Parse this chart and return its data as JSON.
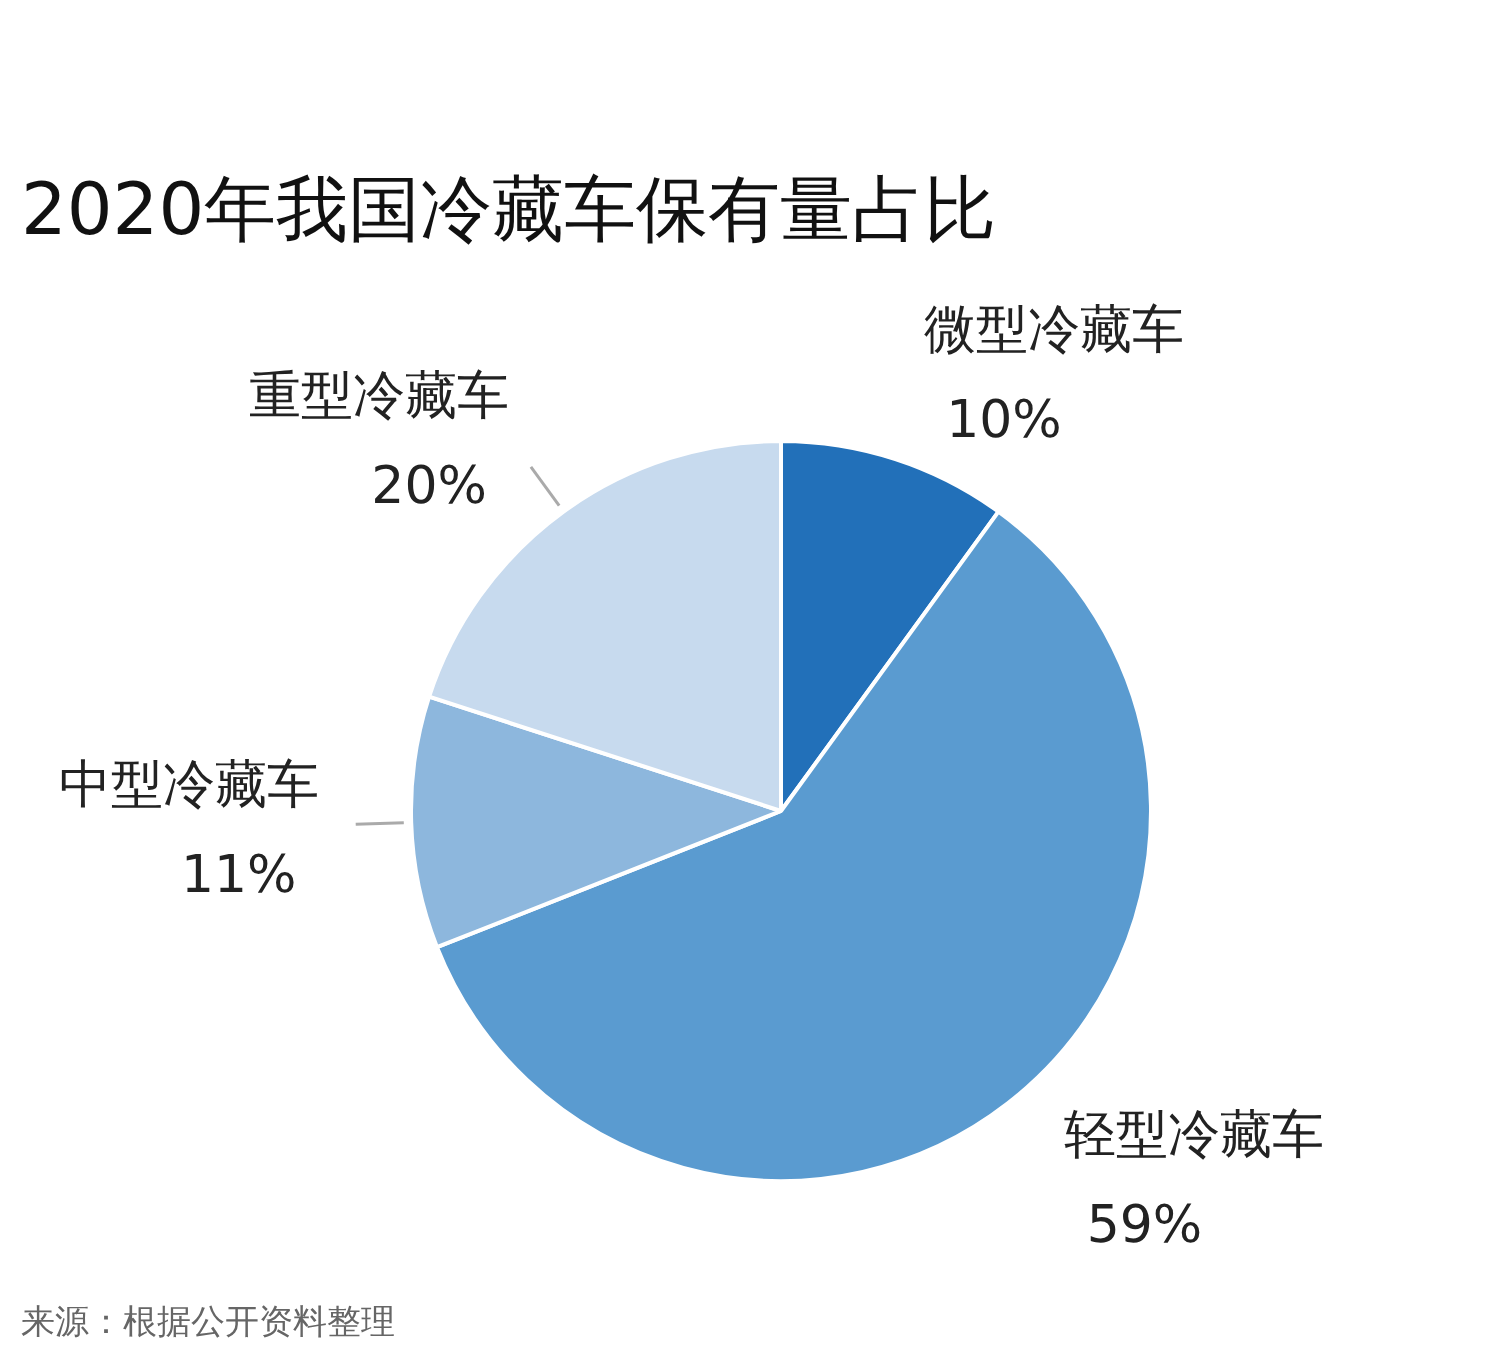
{
  "chart_data": {
    "type": "pie",
    "title": "2020年我国冷藏车保有量占比",
    "categories": [
      "微型冷藏车",
      "轻型冷藏车",
      "中型冷藏车",
      "重型冷藏车"
    ],
    "values": [
      10,
      59,
      11,
      20
    ],
    "value_labels": [
      "10%",
      "59%",
      "11%",
      "20%"
    ],
    "colors": [
      "#2270b9",
      "#5a9bd0",
      "#8db7dd",
      "#c7daee"
    ],
    "annotations": [
      "来源：根据公开资料整理"
    ]
  }
}
